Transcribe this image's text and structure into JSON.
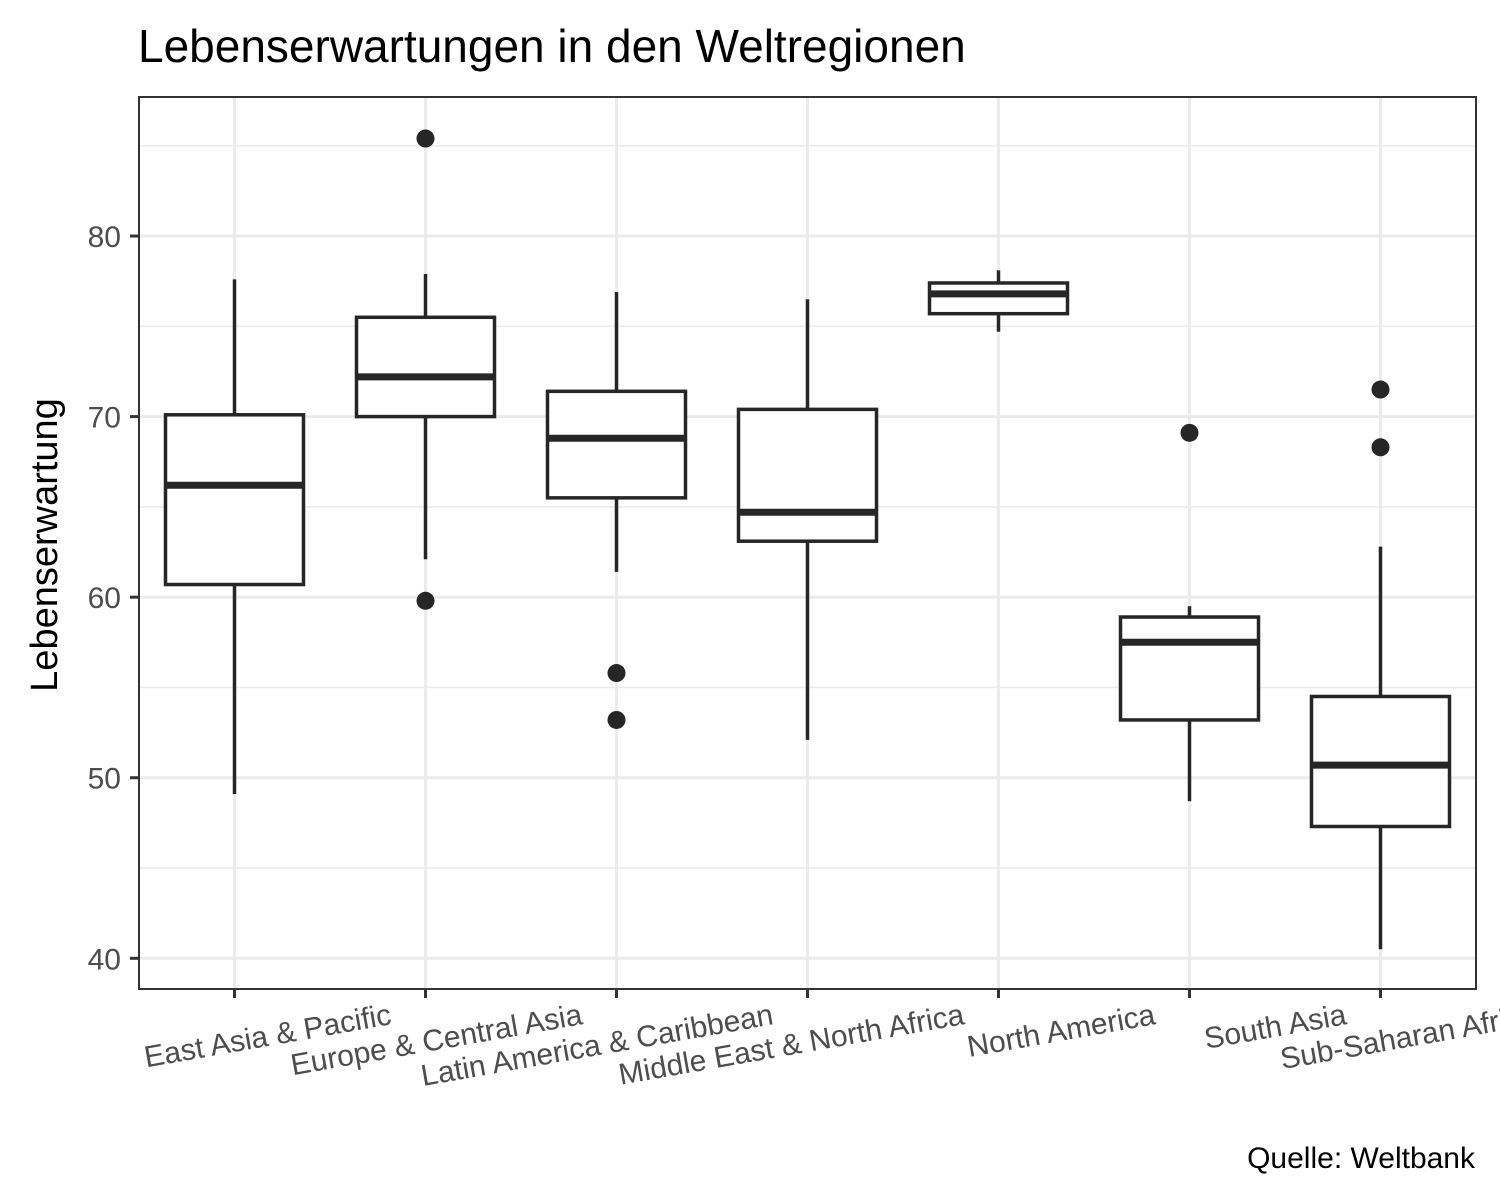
{
  "chart_data": {
    "type": "boxplot",
    "title": "Lebenserwartungen in den Weltregionen",
    "xlabel": "",
    "ylabel": "Lebenserwartung",
    "caption": "Quelle: Weltbank",
    "ylim": [
      38.3,
      87.7
    ],
    "yticks": [
      40,
      50,
      60,
      70,
      80
    ],
    "grid": true,
    "legend": "none",
    "colors": {
      "box": "#262626",
      "grid": "#ebebeb",
      "panel_border": "#333333",
      "tick_label": "#4d4d4d"
    },
    "categories": [
      "East Asia & Pacific",
      "Europe & Central Asia",
      "Latin America & Caribbean",
      "Middle East & North Africa",
      "North America",
      "South Asia",
      "Sub-Saharan Africa"
    ],
    "boxes": [
      {
        "category": "East Asia & Pacific",
        "whisker_low": 49.1,
        "q1": 60.7,
        "median": 66.2,
        "q3": 70.1,
        "whisker_high": 77.6,
        "outliers": []
      },
      {
        "category": "Europe & Central Asia",
        "whisker_low": 62.1,
        "q1": 70.0,
        "median": 72.2,
        "q3": 75.5,
        "whisker_high": 77.9,
        "outliers": [
          85.4,
          59.8
        ]
      },
      {
        "category": "Latin America & Caribbean",
        "whisker_low": 61.4,
        "q1": 65.5,
        "median": 68.8,
        "q3": 71.4,
        "whisker_high": 76.9,
        "outliers": [
          55.8,
          53.2
        ]
      },
      {
        "category": "Middle East & North Africa",
        "whisker_low": 52.1,
        "q1": 63.1,
        "median": 64.7,
        "q3": 70.4,
        "whisker_high": 76.5,
        "outliers": []
      },
      {
        "category": "North America",
        "whisker_low": 74.7,
        "q1": 75.7,
        "median": 76.8,
        "q3": 77.4,
        "whisker_high": 78.1,
        "outliers": []
      },
      {
        "category": "South Asia",
        "whisker_low": 48.7,
        "q1": 53.2,
        "median": 57.5,
        "q3": 58.9,
        "whisker_high": 59.5,
        "outliers": [
          69.1
        ]
      },
      {
        "category": "Sub-Saharan Africa",
        "whisker_low": 40.5,
        "q1": 47.3,
        "median": 50.7,
        "q3": 54.5,
        "whisker_high": 62.8,
        "outliers": [
          71.5,
          68.3
        ]
      }
    ]
  }
}
